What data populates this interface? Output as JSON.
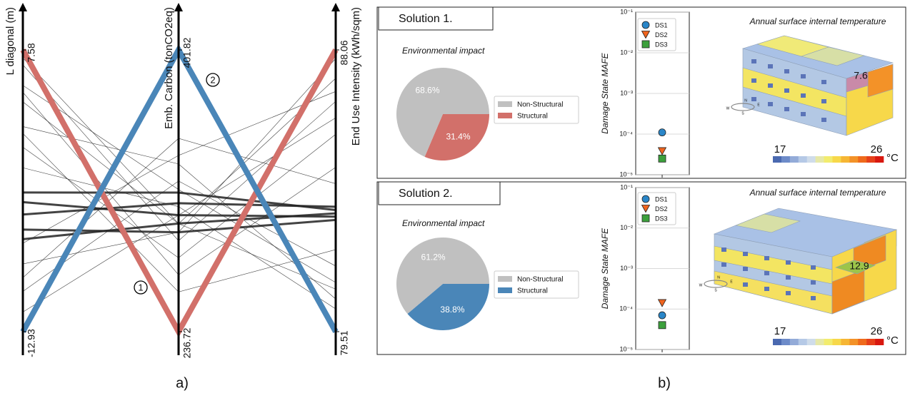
{
  "figure_labels": [
    "a)",
    "b)"
  ],
  "chart_data": [
    {
      "type": "parallel",
      "axes": [
        {
          "label": "L diagonal (m)",
          "ylim": [
            -12.93,
            7.58
          ],
          "yticks": [
            -12.93,
            7.58
          ]
        },
        {
          "label": "Emb. Carbon (tonCO2eq)",
          "ylim": [
            236.72,
            401.82
          ],
          "yticks": [
            236.72,
            401.82
          ]
        },
        {
          "label": "End Use Intensity (kWh/sqm)",
          "ylim": [
            79.51,
            88.06
          ],
          "yticks": [
            79.51,
            88.06
          ]
        }
      ],
      "series": [
        {
          "color": "#222222",
          "width": 0.6,
          "values": [
            6.5,
            290,
            86.5
          ]
        },
        {
          "color": "#222222",
          "width": 0.6,
          "values": [
            5.0,
            320,
            81.0
          ]
        },
        {
          "color": "#222222",
          "width": 0.6,
          "values": [
            3.8,
            300,
            87.2
          ]
        },
        {
          "color": "#222222",
          "width": 0.6,
          "values": [
            2.0,
            335,
            80.5
          ]
        },
        {
          "color": "#222222",
          "width": 0.6,
          "values": [
            0.5,
            280,
            85.5
          ]
        },
        {
          "color": "#222222",
          "width": 0.6,
          "values": [
            -1.0,
            310,
            80.2
          ]
        },
        {
          "color": "#222222",
          "width": 0.6,
          "values": [
            -8.0,
            295,
            87.8
          ]
        },
        {
          "color": "#222222",
          "width": 0.6,
          "values": [
            -10.0,
            325,
            81.5
          ]
        },
        {
          "color": "#222222",
          "width": 0.6,
          "values": [
            -11.5,
            305,
            86.0
          ]
        },
        {
          "color": "#222222",
          "width": 0.6,
          "values": [
            4.5,
            270,
            84.5
          ]
        },
        {
          "color": "#222222",
          "width": 0.6,
          "values": [
            -9.0,
            350,
            84.0
          ]
        },
        {
          "color": "#222222",
          "width": 0.6,
          "values": [
            1.5,
            260,
            82.0
          ]
        },
        {
          "color": "#222222",
          "width": 0.6,
          "values": [
            -6.5,
            340,
            86.8
          ]
        },
        {
          "color": "#222222",
          "width": 0.6,
          "values": [
            7.0,
            300,
            80.8
          ]
        },
        {
          "color": "#222222",
          "width": 3,
          "values": [
            -2.8,
            318.2,
            83.2
          ]
        },
        {
          "color": "#222222",
          "width": 3,
          "values": [
            -6.2,
            300.1,
            83.1
          ]
        },
        {
          "color": "#222222",
          "width": 3,
          "values": [
            -4.4,
            312.0,
            83.3
          ]
        },
        {
          "color": "#222222",
          "width": 3,
          "values": [
            -5.5,
            295.0,
            82.9
          ]
        },
        {
          "color": "#222222",
          "width": 3,
          "values": [
            -3.5,
            305.0,
            83.0
          ]
        },
        {
          "name": "1",
          "color": "#d2706a",
          "width": 8,
          "values": [
            7.58,
            236.72,
            88.06
          ]
        },
        {
          "name": "2",
          "color": "#4a86b8",
          "width": 8,
          "values": [
            -12.93,
            401.82,
            79.51
          ]
        }
      ]
    },
    {
      "type": "pie",
      "title": "Solution 1.",
      "subtitle": "Environmental impact",
      "categories": [
        "Non-Structural",
        "Structural"
      ],
      "values": [
        68.6,
        31.4
      ],
      "value_labels": [
        "68.6%",
        "31.4%"
      ],
      "colors": [
        "#c0c0c0",
        "#d2706a"
      ]
    },
    {
      "type": "scatter",
      "ylabel": "Damage State MAFE",
      "log": true,
      "grid": true,
      "ylim": [
        1e-05,
        0.1
      ],
      "yticks": [
        {
          "value": 1e-05,
          "label": "10⁻⁵"
        },
        {
          "value": 0.0001,
          "label": "10⁻⁴"
        },
        {
          "value": 0.001,
          "label": "10⁻³"
        },
        {
          "value": 0.01,
          "label": "10⁻²"
        },
        {
          "value": 0.1,
          "label": "10⁻¹"
        }
      ],
      "series": [
        {
          "name": "DS1",
          "color": "#2a86c8",
          "marker": "o",
          "values": [
            0.00011
          ]
        },
        {
          "name": "DS2",
          "color": "#f0641e",
          "marker": "v",
          "values": [
            3.8e-05
          ]
        },
        {
          "name": "DS3",
          "color": "#3ca03c",
          "marker": "s",
          "values": [
            2.5e-05
          ]
        }
      ]
    },
    {
      "type": "render",
      "title": "Annual surface internal temperature",
      "annotation": 7.6,
      "compass": [
        "N",
        "E",
        "S",
        "W"
      ],
      "colorbar": {
        "xlim": [
          17,
          26
        ],
        "xticks": [
          17,
          26
        ],
        "label": "°C",
        "colors": [
          "#4a69b0",
          "#6d8bc9",
          "#93abd8",
          "#b5c9e6",
          "#cfdcea",
          "#e6e8a8",
          "#f2ec6e",
          "#f7d84a",
          "#f6b634",
          "#f39228",
          "#ef6a1c",
          "#e6401a",
          "#d8180f"
        ]
      }
    },
    {
      "type": "pie",
      "title": "Solution 2.",
      "subtitle": "Environmental impact",
      "categories": [
        "Non-Structural",
        "Structural"
      ],
      "values": [
        61.2,
        38.8
      ],
      "value_labels": [
        "61.2%",
        "38.8%"
      ],
      "colors": [
        "#c0c0c0",
        "#4a86b8"
      ]
    },
    {
      "type": "scatter",
      "ylabel": "Damage State MAFE",
      "log": true,
      "grid": true,
      "ylim": [
        1e-05,
        0.1
      ],
      "yticks": [
        {
          "value": 1e-05,
          "label": "10⁻⁵"
        },
        {
          "value": 0.0001,
          "label": "10⁻⁴"
        },
        {
          "value": 0.001,
          "label": "10⁻³"
        },
        {
          "value": 0.01,
          "label": "10⁻²"
        },
        {
          "value": 0.1,
          "label": "10⁻¹"
        }
      ],
      "series": [
        {
          "name": "DS1",
          "color": "#2a86c8",
          "marker": "o",
          "values": [
            7e-05
          ]
        },
        {
          "name": "DS2",
          "color": "#f0641e",
          "marker": "v",
          "values": [
            0.00014
          ]
        },
        {
          "name": "DS3",
          "color": "#3ca03c",
          "marker": "s",
          "values": [
            4e-05
          ]
        }
      ]
    },
    {
      "type": "render",
      "title": "Annual surface internal temperature",
      "annotation": 12.9,
      "compass": [
        "N",
        "E",
        "S",
        "W"
      ],
      "colorbar": {
        "xlim": [
          17,
          26
        ],
        "xticks": [
          17,
          26
        ],
        "label": "°C",
        "colors": [
          "#4a69b0",
          "#6d8bc9",
          "#93abd8",
          "#b5c9e6",
          "#cfdcea",
          "#e6e8a8",
          "#f2ec6e",
          "#f7d84a",
          "#f6b634",
          "#f39228",
          "#ef6a1c",
          "#e6401a",
          "#d8180f"
        ]
      }
    }
  ]
}
